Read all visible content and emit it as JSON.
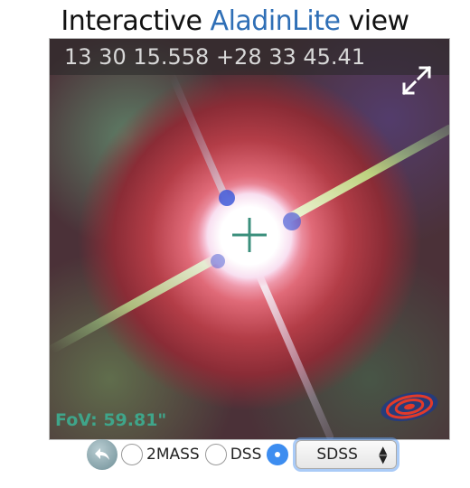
{
  "title": {
    "prefix": "Interactive ",
    "link": "AladinLite",
    "suffix": " view"
  },
  "viewer": {
    "coordinates": "13 30 15.558 +28 33 45.41",
    "fov": "FoV: 59.81\""
  },
  "controls": {
    "surveys": [
      {
        "label": "2MASS",
        "selected": false
      },
      {
        "label": "DSS",
        "selected": false
      },
      {
        "label": "",
        "selected": true
      }
    ],
    "dropdown_value": "SDSS"
  },
  "icons": {
    "back": "back-arrow-icon",
    "fullscreen": "expand-icon",
    "crosshair": "crosshair-icon",
    "logo": "aladin-logo-icon"
  },
  "colors": {
    "link": "#2f6fb6",
    "fov": "#3fa58a",
    "radio_selected": "#3d8df0"
  }
}
